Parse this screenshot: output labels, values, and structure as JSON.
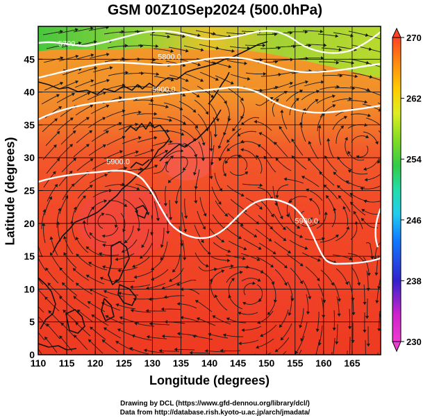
{
  "title": "GSM 00Z10Sep2024 (500.0hPa)",
  "xlabel": "Longitude (degrees)",
  "ylabel": "Latitude  (degrees)",
  "x_ticks": [
    "110",
    "115",
    "120",
    "125",
    "130",
    "135",
    "140",
    "145",
    "150",
    "155",
    "160",
    "165"
  ],
  "y_ticks": [
    "0",
    "5",
    "10",
    "15",
    "20",
    "25",
    "30",
    "35",
    "40",
    "45"
  ],
  "x_range": [
    110,
    170
  ],
  "y_range": [
    0,
    50
  ],
  "colorbar": {
    "ticks": [
      "230",
      "238",
      "246",
      "254",
      "262",
      "270"
    ],
    "range": [
      230,
      270
    ],
    "colors": [
      "#ee3ad2",
      "#cc22cc",
      "#3322cc",
      "#1177ff",
      "#22ccee",
      "#22ddaa",
      "#33cc44",
      "#88dd22",
      "#ddee22",
      "#ffcc00",
      "#ff8811",
      "#ff4422"
    ]
  },
  "contour_labels": [
    {
      "text": "5700",
      "lon": 115,
      "lat": 47
    },
    {
      "text": "5800.0",
      "lon": 133,
      "lat": 45
    },
    {
      "text": "5900.0",
      "lon": 132,
      "lat": 40
    },
    {
      "text": "5900.0",
      "lon": 124,
      "lat": 29
    },
    {
      "text": "5900.0",
      "lon": 157,
      "lat": 20
    }
  ],
  "credit_line1": "Drawing by DCL (https://www.gfd-dennou.org/library/dcl/)",
  "credit_line2": "Data from http://database.rish.kyoto-u.ac.jp/arch/jmadata/"
}
